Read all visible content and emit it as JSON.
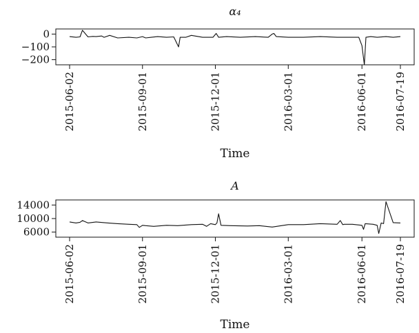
{
  "chart_data": [
    {
      "type": "line",
      "title": "α₄",
      "xlabel": "Time",
      "ylabel": "",
      "x_ticks": [
        "2015-06-02",
        "2015-09-01",
        "2015-12-01",
        "2016-03-01",
        "2016-06-01",
        "2016-07-19"
      ],
      "y_ticks": [
        "0",
        "−100",
        "−200"
      ],
      "y_tick_values": [
        0,
        -100,
        -200
      ],
      "xlim": [
        "2015-06-02",
        "2016-07-19"
      ],
      "ylim": [
        -240,
        40
      ],
      "x": [
        "2015-06-02",
        "2015-06-10",
        "2015-06-15",
        "2015-06-18",
        "2015-06-25",
        "2015-07-01",
        "2015-07-05",
        "2015-07-12",
        "2015-07-15",
        "2015-07-22",
        "2015-08-01",
        "2015-08-15",
        "2015-08-25",
        "2015-09-01",
        "2015-09-05",
        "2015-09-12",
        "2015-09-20",
        "2015-10-01",
        "2015-10-10",
        "2015-10-16",
        "2015-10-18",
        "2015-10-25",
        "2015-11-01",
        "2015-11-15",
        "2015-11-28",
        "2015-12-02",
        "2015-12-05",
        "2015-12-15",
        "2016-01-01",
        "2016-01-20",
        "2016-02-05",
        "2016-02-10",
        "2016-02-12",
        "2016-02-15",
        "2016-03-01",
        "2016-03-20",
        "2016-04-10",
        "2016-05-01",
        "2016-05-20",
        "2016-05-28",
        "2016-06-01",
        "2016-06-04",
        "2016-06-06",
        "2016-06-12",
        "2016-06-20",
        "2016-07-01",
        "2016-07-10",
        "2016-07-19"
      ],
      "values": [
        -20,
        -25,
        -22,
        30,
        -22,
        -18,
        -20,
        -15,
        -25,
        -10,
        -30,
        -25,
        -30,
        -20,
        -30,
        -25,
        -20,
        -25,
        -22,
        -100,
        -25,
        -25,
        -10,
        -25,
        -25,
        5,
        -25,
        -20,
        -25,
        -20,
        -25,
        0,
        5,
        -20,
        -25,
        -25,
        -20,
        -25,
        -25,
        -25,
        -90,
        -240,
        -25,
        -20,
        -25,
        -20,
        -25,
        -20
      ]
    },
    {
      "type": "line",
      "title": "A",
      "xlabel": "Time",
      "ylabel": "",
      "x_ticks": [
        "2015-06-02",
        "2015-09-01",
        "2015-12-01",
        "2016-03-01",
        "2016-06-01",
        "2016-07-19"
      ],
      "y_ticks": [
        "14000",
        "10000",
        "6000"
      ],
      "y_tick_values": [
        14000,
        10000,
        6000
      ],
      "xlim": [
        "2015-06-02",
        "2016-07-19"
      ],
      "ylim": [
        4500,
        15500
      ],
      "x": [
        "2015-06-02",
        "2015-06-10",
        "2015-06-15",
        "2015-06-18",
        "2015-06-25",
        "2015-07-05",
        "2015-07-20",
        "2015-08-01",
        "2015-08-15",
        "2015-08-25",
        "2015-08-28",
        "2015-09-01",
        "2015-09-05",
        "2015-09-15",
        "2015-10-01",
        "2015-10-15",
        "2015-11-01",
        "2015-11-15",
        "2015-11-20",
        "2015-11-25",
        "2015-12-01",
        "2015-12-03",
        "2015-12-05",
        "2015-12-08",
        "2015-12-20",
        "2016-01-10",
        "2016-01-25",
        "2016-02-10",
        "2016-03-01",
        "2016-03-20",
        "2016-04-10",
        "2016-05-01",
        "2016-05-05",
        "2016-05-08",
        "2016-05-10",
        "2016-05-20",
        "2016-06-01",
        "2016-06-03",
        "2016-06-05",
        "2016-06-15",
        "2016-06-20",
        "2016-06-22",
        "2016-06-25",
        "2016-06-28",
        "2016-07-01",
        "2016-07-10",
        "2016-07-19"
      ],
      "values": [
        9000,
        8700,
        8900,
        9400,
        8700,
        9000,
        8700,
        8500,
        8300,
        8200,
        7400,
        8000,
        7900,
        7700,
        8000,
        7900,
        8200,
        8300,
        7700,
        8500,
        8200,
        8700,
        11400,
        8000,
        7900,
        7800,
        7900,
        7500,
        8200,
        8200,
        8500,
        8300,
        9400,
        8200,
        8300,
        8300,
        8000,
        6800,
        8500,
        8300,
        8000,
        5600,
        8700,
        8500,
        15000,
        8800,
        8700
      ]
    }
  ]
}
